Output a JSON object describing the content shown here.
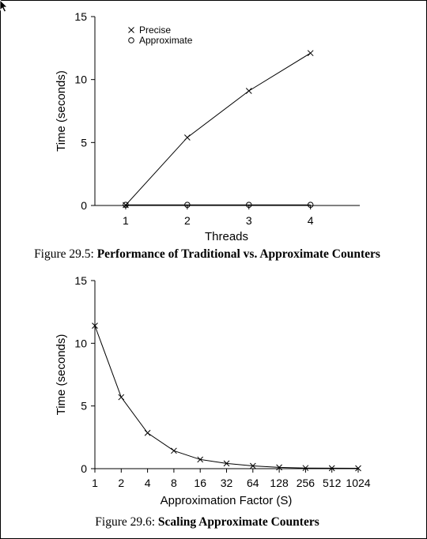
{
  "cursor": "arrow-cursor-icon",
  "figures": [
    {
      "number": "Figure 29.5:",
      "title": "Performance of Traditional vs. Approximate Counters"
    },
    {
      "number": "Figure 29.6:",
      "title": "Scaling Approximate Counters"
    }
  ],
  "chart_data": [
    {
      "type": "line",
      "xlabel": "Threads",
      "ylabel": "Time (seconds)",
      "x": [
        1,
        2,
        3,
        4
      ],
      "xticks": [
        "1",
        "2",
        "3",
        "4"
      ],
      "xlim": [
        0.5,
        4.8
      ],
      "ylim": [
        0,
        15
      ],
      "yticks": [
        0,
        5,
        10,
        15
      ],
      "legend_position": "top-left",
      "grid": false,
      "series": [
        {
          "name": "Precise",
          "marker": "x",
          "values": [
            0.03,
            5.4,
            9.1,
            12.1
          ]
        },
        {
          "name": "Approximate",
          "marker": "o",
          "values": [
            0.05,
            0.05,
            0.05,
            0.05
          ]
        }
      ]
    },
    {
      "type": "line",
      "xlabel": "Approximation Factor (S)",
      "ylabel": "Time (seconds)",
      "x": [
        1,
        2,
        4,
        8,
        16,
        32,
        64,
        128,
        256,
        512,
        1024
      ],
      "xticks": [
        "1",
        "2",
        "4",
        "8",
        "16",
        "32",
        "64",
        "128",
        "256",
        "512",
        "1024"
      ],
      "x_scale": "log2",
      "ylim": [
        0,
        15
      ],
      "yticks": [
        0,
        5,
        10,
        15
      ],
      "grid": false,
      "series": [
        {
          "marker": "x",
          "values": [
            11.4,
            5.7,
            2.85,
            1.43,
            0.73,
            0.42,
            0.22,
            0.1,
            0.05,
            0.04,
            0.03
          ]
        }
      ]
    }
  ]
}
